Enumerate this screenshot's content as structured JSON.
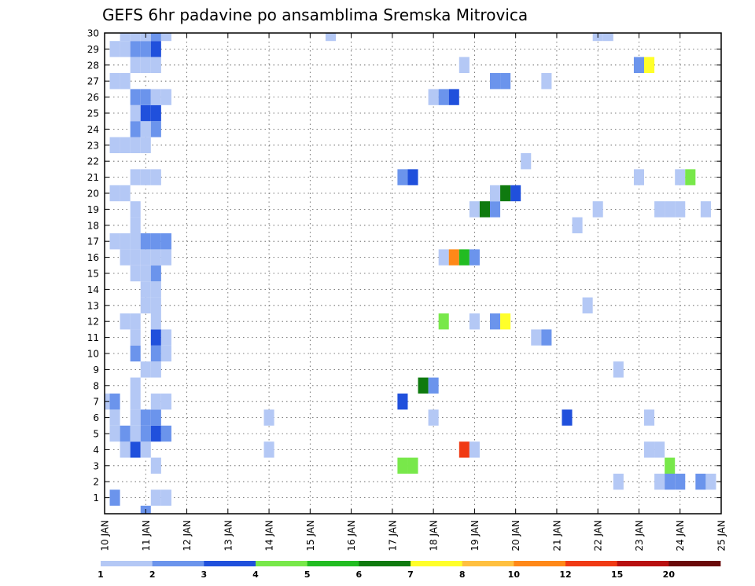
{
  "chart_data": {
    "type": "heatmap",
    "title": "GEFS 6hr padavine po ansamblima Sremska Mitrovica",
    "xlabel": "",
    "ylabel": "",
    "xlim": [
      10,
      25
    ],
    "ylim": [
      0,
      30
    ],
    "x_tick_values": [
      10,
      11,
      12,
      13,
      14,
      15,
      16,
      17,
      18,
      19,
      20,
      21,
      22,
      23,
      24,
      25
    ],
    "x_tick_labels": [
      "10 JAN",
      "11 JAN",
      "12 JAN",
      "13 JAN",
      "14 JAN",
      "15 JAN",
      "16 JAN",
      "17 JAN",
      "18 JAN",
      "19 JAN",
      "20 JAN",
      "21 JAN",
      "22 JAN",
      "23 JAN",
      "24 JAN",
      "25 JAN"
    ],
    "y_tick_labels": [
      "1",
      "2",
      "3",
      "4",
      "5",
      "6",
      "7",
      "8",
      "9",
      "10",
      "11",
      "12",
      "13",
      "14",
      "15",
      "16",
      "17",
      "18",
      "19",
      "20",
      "21",
      "22",
      "23",
      "24",
      "25",
      "26",
      "27",
      "28",
      "29",
      "30"
    ],
    "grid": true,
    "time_step_days": 0.25,
    "colorbar": {
      "labels": [
        "1",
        "2",
        "3",
        "4",
        "5",
        "6",
        "7",
        "8",
        "10",
        "12",
        "15",
        "20"
      ],
      "colors": [
        "#b4c8f5",
        "#6b94ec",
        "#2050dc",
        "#78e84a",
        "#22bc22",
        "#0f7a0f",
        "#ffff2a",
        "#ffc040",
        "#ff8818",
        "#f03a14",
        "#b81010",
        "#6a0a0a"
      ]
    },
    "cells": [
      {
        "m": 0,
        "t": 11.0,
        "c": 2
      },
      {
        "m": 1,
        "t": 10.25,
        "c": 2
      },
      {
        "m": 1,
        "t": 11.25,
        "c": 1
      },
      {
        "m": 1,
        "t": 11.5,
        "c": 1
      },
      {
        "m": 2,
        "t": 22.5,
        "c": 1
      },
      {
        "m": 2,
        "t": 23.5,
        "c": 1
      },
      {
        "m": 2,
        "t": 23.75,
        "c": 2
      },
      {
        "m": 2,
        "t": 24.0,
        "c": 2
      },
      {
        "m": 2,
        "t": 24.5,
        "c": 2
      },
      {
        "m": 2,
        "t": 24.75,
        "c": 1
      },
      {
        "m": 3,
        "t": 11.25,
        "c": 1
      },
      {
        "m": 3,
        "t": 17.25,
        "c": 4
      },
      {
        "m": 3,
        "t": 17.5,
        "c": 4
      },
      {
        "m": 3,
        "t": 23.75,
        "c": 4
      },
      {
        "m": 4,
        "t": 10.5,
        "c": 1
      },
      {
        "m": 4,
        "t": 10.75,
        "c": 3
      },
      {
        "m": 4,
        "t": 11.0,
        "c": 1
      },
      {
        "m": 4,
        "t": 14.0,
        "c": 1
      },
      {
        "m": 4,
        "t": 18.75,
        "c": 10
      },
      {
        "m": 4,
        "t": 19.0,
        "c": 1
      },
      {
        "m": 4,
        "t": 23.25,
        "c": 1
      },
      {
        "m": 4,
        "t": 23.5,
        "c": 1
      },
      {
        "m": 5,
        "t": 10.25,
        "c": 1
      },
      {
        "m": 5,
        "t": 10.5,
        "c": 2
      },
      {
        "m": 5,
        "t": 10.75,
        "c": 1
      },
      {
        "m": 5,
        "t": 11.0,
        "c": 2
      },
      {
        "m": 5,
        "t": 11.25,
        "c": 3
      },
      {
        "m": 5,
        "t": 11.5,
        "c": 2
      },
      {
        "m": 6,
        "t": 10.25,
        "c": 1
      },
      {
        "m": 6,
        "t": 10.75,
        "c": 1
      },
      {
        "m": 6,
        "t": 11.0,
        "c": 2
      },
      {
        "m": 6,
        "t": 11.25,
        "c": 2
      },
      {
        "m": 6,
        "t": 14.0,
        "c": 1
      },
      {
        "m": 6,
        "t": 18.0,
        "c": 1
      },
      {
        "m": 6,
        "t": 21.25,
        "c": 3
      },
      {
        "m": 6,
        "t": 23.25,
        "c": 1
      },
      {
        "m": 7,
        "t": 10.0,
        "c": 1
      },
      {
        "m": 7,
        "t": 10.25,
        "c": 2
      },
      {
        "m": 7,
        "t": 10.75,
        "c": 1
      },
      {
        "m": 7,
        "t": 11.25,
        "c": 1
      },
      {
        "m": 7,
        "t": 11.5,
        "c": 1
      },
      {
        "m": 7,
        "t": 17.25,
        "c": 3
      },
      {
        "m": 8,
        "t": 10.75,
        "c": 1
      },
      {
        "m": 8,
        "t": 17.75,
        "c": 6
      },
      {
        "m": 8,
        "t": 18.0,
        "c": 2
      },
      {
        "m": 9,
        "t": 11.0,
        "c": 1
      },
      {
        "m": 9,
        "t": 11.25,
        "c": 1
      },
      {
        "m": 9,
        "t": 22.5,
        "c": 1
      },
      {
        "m": 10,
        "t": 10.75,
        "c": 2
      },
      {
        "m": 10,
        "t": 11.25,
        "c": 2
      },
      {
        "m": 10,
        "t": 11.5,
        "c": 1
      },
      {
        "m": 11,
        "t": 10.75,
        "c": 1
      },
      {
        "m": 11,
        "t": 11.25,
        "c": 3
      },
      {
        "m": 11,
        "t": 11.5,
        "c": 1
      },
      {
        "m": 11,
        "t": 20.5,
        "c": 1
      },
      {
        "m": 11,
        "t": 20.75,
        "c": 2
      },
      {
        "m": 12,
        "t": 10.5,
        "c": 1
      },
      {
        "m": 12,
        "t": 10.75,
        "c": 1
      },
      {
        "m": 12,
        "t": 11.25,
        "c": 1
      },
      {
        "m": 12,
        "t": 18.25,
        "c": 4
      },
      {
        "m": 12,
        "t": 19.0,
        "c": 1
      },
      {
        "m": 12,
        "t": 19.5,
        "c": 2
      },
      {
        "m": 12,
        "t": 19.75,
        "c": 7
      },
      {
        "m": 13,
        "t": 11.0,
        "c": 1
      },
      {
        "m": 13,
        "t": 11.25,
        "c": 1
      },
      {
        "m": 13,
        "t": 21.75,
        "c": 1
      },
      {
        "m": 14,
        "t": 11.0,
        "c": 1
      },
      {
        "m": 14,
        "t": 11.25,
        "c": 1
      },
      {
        "m": 15,
        "t": 10.75,
        "c": 1
      },
      {
        "m": 15,
        "t": 11.0,
        "c": 1
      },
      {
        "m": 15,
        "t": 11.25,
        "c": 2
      },
      {
        "m": 16,
        "t": 10.5,
        "c": 1
      },
      {
        "m": 16,
        "t": 10.75,
        "c": 1
      },
      {
        "m": 16,
        "t": 11.0,
        "c": 1
      },
      {
        "m": 16,
        "t": 11.25,
        "c": 1
      },
      {
        "m": 16,
        "t": 11.5,
        "c": 1
      },
      {
        "m": 16,
        "t": 18.25,
        "c": 1
      },
      {
        "m": 16,
        "t": 18.5,
        "c": 9
      },
      {
        "m": 16,
        "t": 18.75,
        "c": 5
      },
      {
        "m": 16,
        "t": 19.0,
        "c": 2
      },
      {
        "m": 17,
        "t": 10.25,
        "c": 1
      },
      {
        "m": 17,
        "t": 10.5,
        "c": 1
      },
      {
        "m": 17,
        "t": 10.75,
        "c": 1
      },
      {
        "m": 17,
        "t": 11.0,
        "c": 2
      },
      {
        "m": 17,
        "t": 11.25,
        "c": 2
      },
      {
        "m": 17,
        "t": 11.5,
        "c": 2
      },
      {
        "m": 18,
        "t": 10.75,
        "c": 1
      },
      {
        "m": 18,
        "t": 21.5,
        "c": 1
      },
      {
        "m": 19,
        "t": 10.75,
        "c": 1
      },
      {
        "m": 19,
        "t": 19.0,
        "c": 1
      },
      {
        "m": 19,
        "t": 19.25,
        "c": 6
      },
      {
        "m": 19,
        "t": 19.5,
        "c": 2
      },
      {
        "m": 19,
        "t": 22.0,
        "c": 1
      },
      {
        "m": 19,
        "t": 23.5,
        "c": 1
      },
      {
        "m": 19,
        "t": 23.75,
        "c": 1
      },
      {
        "m": 19,
        "t": 24.0,
        "c": 1
      },
      {
        "m": 19,
        "t": 24.625,
        "c": 1
      },
      {
        "m": 20,
        "t": 10.25,
        "c": 1
      },
      {
        "m": 20,
        "t": 10.5,
        "c": 1
      },
      {
        "m": 20,
        "t": 19.5,
        "c": 1
      },
      {
        "m": 20,
        "t": 19.75,
        "c": 6
      },
      {
        "m": 20,
        "t": 20.0,
        "c": 3
      },
      {
        "m": 21,
        "t": 10.75,
        "c": 1
      },
      {
        "m": 21,
        "t": 11.0,
        "c": 1
      },
      {
        "m": 21,
        "t": 11.25,
        "c": 1
      },
      {
        "m": 21,
        "t": 17.25,
        "c": 2
      },
      {
        "m": 21,
        "t": 17.5,
        "c": 3
      },
      {
        "m": 21,
        "t": 23.0,
        "c": 1
      },
      {
        "m": 21,
        "t": 24.0,
        "c": 1
      },
      {
        "m": 21,
        "t": 24.25,
        "c": 4
      },
      {
        "m": 22,
        "t": 20.25,
        "c": 1
      },
      {
        "m": 23,
        "t": 10.25,
        "c": 1
      },
      {
        "m": 23,
        "t": 10.5,
        "c": 1
      },
      {
        "m": 23,
        "t": 10.75,
        "c": 1
      },
      {
        "m": 23,
        "t": 11.0,
        "c": 1
      },
      {
        "m": 24,
        "t": 10.75,
        "c": 2
      },
      {
        "m": 24,
        "t": 11.0,
        "c": 1
      },
      {
        "m": 24,
        "t": 11.25,
        "c": 2
      },
      {
        "m": 25,
        "t": 10.75,
        "c": 1
      },
      {
        "m": 25,
        "t": 11.0,
        "c": 3
      },
      {
        "m": 25,
        "t": 11.25,
        "c": 3
      },
      {
        "m": 26,
        "t": 10.75,
        "c": 2
      },
      {
        "m": 26,
        "t": 11.0,
        "c": 2
      },
      {
        "m": 26,
        "t": 11.25,
        "c": 1
      },
      {
        "m": 26,
        "t": 11.5,
        "c": 1
      },
      {
        "m": 26,
        "t": 18.0,
        "c": 1
      },
      {
        "m": 26,
        "t": 18.25,
        "c": 2
      },
      {
        "m": 26,
        "t": 18.5,
        "c": 3
      },
      {
        "m": 27,
        "t": 10.25,
        "c": 1
      },
      {
        "m": 27,
        "t": 10.5,
        "c": 1
      },
      {
        "m": 27,
        "t": 19.5,
        "c": 2
      },
      {
        "m": 27,
        "t": 19.75,
        "c": 2
      },
      {
        "m": 27,
        "t": 20.75,
        "c": 1
      },
      {
        "m": 28,
        "t": 10.75,
        "c": 1
      },
      {
        "m": 28,
        "t": 11.0,
        "c": 1
      },
      {
        "m": 28,
        "t": 11.25,
        "c": 1
      },
      {
        "m": 28,
        "t": 18.75,
        "c": 1
      },
      {
        "m": 28,
        "t": 23.0,
        "c": 2
      },
      {
        "m": 28,
        "t": 23.25,
        "c": 7
      },
      {
        "m": 29,
        "t": 10.25,
        "c": 1
      },
      {
        "m": 29,
        "t": 10.5,
        "c": 1
      },
      {
        "m": 29,
        "t": 10.75,
        "c": 2
      },
      {
        "m": 29,
        "t": 11.0,
        "c": 2
      },
      {
        "m": 29,
        "t": 11.25,
        "c": 3
      },
      {
        "m": 30,
        "t": 10.5,
        "c": 1
      },
      {
        "m": 30,
        "t": 10.75,
        "c": 1
      },
      {
        "m": 30,
        "t": 11.0,
        "c": 1
      },
      {
        "m": 30,
        "t": 11.25,
        "c": 2
      },
      {
        "m": 30,
        "t": 11.5,
        "c": 1
      },
      {
        "m": 30,
        "t": 15.5,
        "c": 1
      },
      {
        "m": 30,
        "t": 22.0,
        "c": 1
      },
      {
        "m": 30,
        "t": 22.25,
        "c": 1
      }
    ]
  }
}
